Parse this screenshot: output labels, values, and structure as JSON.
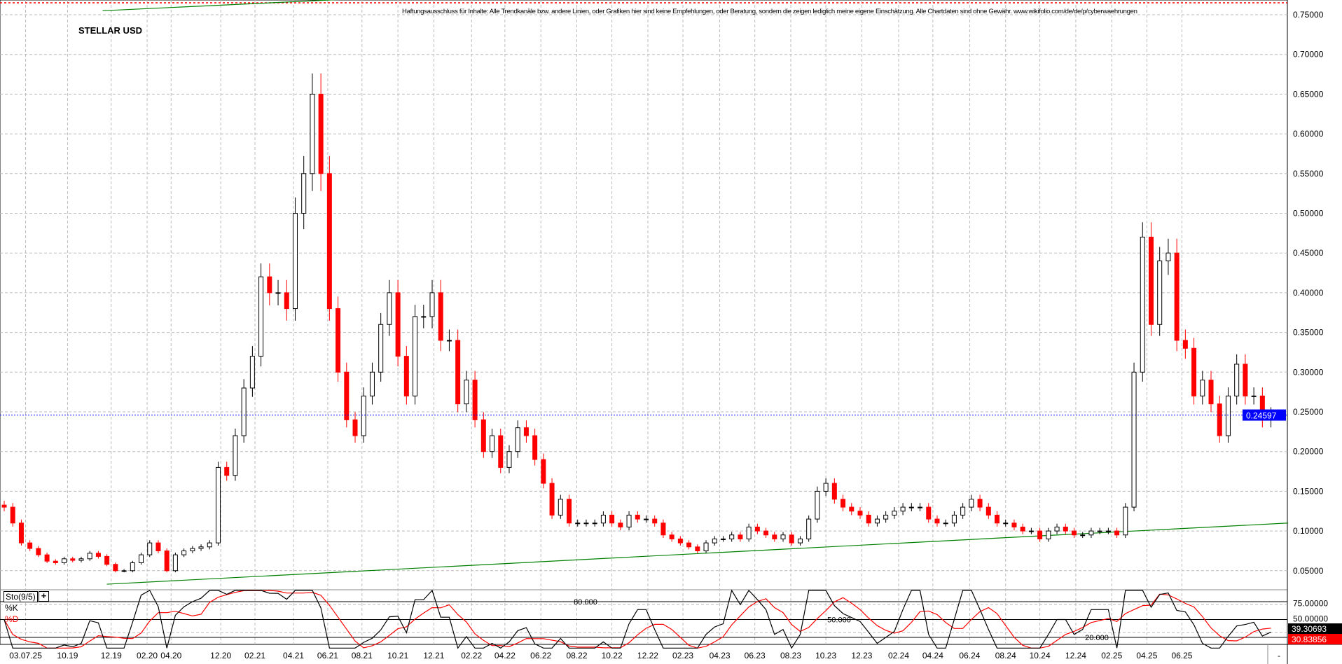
{
  "header": {
    "title": "STELLAR USD",
    "disclaimer": "Haftungsausschluss für Inhalte: Alle Trendkanäle bzw. andere Linien, oder Grafiken hier sind keine Empfehlungen, oder Beratung, sondern die zeigen lediglich meine eigene Einschätzung. Alle Chartdaten sind ohne Gewähr.  www.wikifolio.com/de/de/p/cyberwaehrungen"
  },
  "indicator": {
    "label": "Sto(9/5)",
    "add_button": "+",
    "k_label": "%K",
    "d_label": "%D",
    "level_labels": [
      "80.000",
      "50.000",
      "20.000"
    ],
    "axis_labels": [
      "75.00000",
      "50.00000"
    ],
    "k_value": "39.30693",
    "d_value": "30.83856",
    "k_color": "#000000",
    "d_color": "#ff0000"
  },
  "axis_corner": "-",
  "chart_data": {
    "type": "candlestick",
    "title": "STELLAR USD",
    "ylim": [
      0.03,
      0.765
    ],
    "y_ticks": [
      "0.75000",
      "0.70000",
      "0.65000",
      "0.60000",
      "0.55000",
      "0.50000",
      "0.45000",
      "0.40000",
      "0.35000",
      "0.30000",
      "0.25000",
      "0.20000",
      "0.15000",
      "0.10000",
      "0.05000"
    ],
    "grid": true,
    "up_color": "#000000",
    "down_color": "#ff0000",
    "current_price": "0.24597",
    "current_price_color": "#0000ff",
    "resistance_line_price": 0.765,
    "resistance_line_color": "#ff0000",
    "x_tick_labels": [
      {
        "label": "03.07.25",
        "bar": 2.5
      },
      {
        "label": "10.19",
        "bar": 7.4
      },
      {
        "label": "12.19",
        "bar": 12.5
      },
      {
        "label": "02.20",
        "bar": 16.7
      },
      {
        "label": "04.20",
        "bar": 19.5
      },
      {
        "label": "12.20",
        "bar": 25.3
      },
      {
        "label": "02.21",
        "bar": 29.3
      },
      {
        "label": "04.21",
        "bar": 33.8
      },
      {
        "label": "06.21",
        "bar": 37.8
      },
      {
        "label": "08.21",
        "bar": 41.8
      },
      {
        "label": "10.21",
        "bar": 46
      },
      {
        "label": "12.21",
        "bar": 50.2
      },
      {
        "label": "02.22",
        "bar": 54.6
      },
      {
        "label": "04.22",
        "bar": 58.5
      },
      {
        "label": "06.22",
        "bar": 62.7
      },
      {
        "label": "08.22",
        "bar": 66.9
      },
      {
        "label": "10.22",
        "bar": 71
      },
      {
        "label": "12.22",
        "bar": 75.2
      },
      {
        "label": "02.23",
        "bar": 79.3
      },
      {
        "label": "04.23",
        "bar": 83.6
      },
      {
        "label": "06.23",
        "bar": 87.7
      },
      {
        "label": "08.23",
        "bar": 91.9
      },
      {
        "label": "10.23",
        "bar": 96
      },
      {
        "label": "12.23",
        "bar": 100.2
      },
      {
        "label": "02.24",
        "bar": 104.5
      },
      {
        "label": "04.24",
        "bar": 108.5
      },
      {
        "label": "06.24",
        "bar": 112.8
      },
      {
        "label": "08.24",
        "bar": 117
      },
      {
        "label": "10.24",
        "bar": 121
      },
      {
        "label": "12.24",
        "bar": 125.2
      },
      {
        "label": "02.25",
        "bar": 129.4
      },
      {
        "label": "04.25",
        "bar": 133.5
      },
      {
        "label": "06.25",
        "bar": 137.6
      }
    ],
    "trendlines": [
      {
        "color": "#008000",
        "from_bar": 12,
        "from_price": 0.033,
        "to_bar": 150,
        "to_price": 0.11
      },
      {
        "color": "#008000",
        "from_bar": 11.5,
        "from_price": 0.755,
        "to_bar": 41,
        "to_price": 0.77
      }
    ],
    "closes": [
      0.13,
      0.11,
      0.085,
      0.078,
      0.07,
      0.062,
      0.06,
      0.065,
      0.063,
      0.065,
      0.072,
      0.068,
      0.058,
      0.05,
      0.05,
      0.06,
      0.07,
      0.085,
      0.075,
      0.05,
      0.07,
      0.075,
      0.078,
      0.08,
      0.085,
      0.18,
      0.17,
      0.22,
      0.28,
      0.32,
      0.42,
      0.4,
      0.4,
      0.38,
      0.5,
      0.55,
      0.65,
      0.55,
      0.38,
      0.3,
      0.24,
      0.22,
      0.27,
      0.3,
      0.36,
      0.4,
      0.32,
      0.27,
      0.37,
      0.37,
      0.4,
      0.34,
      0.34,
      0.26,
      0.29,
      0.24,
      0.2,
      0.22,
      0.18,
      0.2,
      0.23,
      0.22,
      0.19,
      0.16,
      0.12,
      0.14,
      0.11,
      0.11,
      0.11,
      0.11,
      0.12,
      0.11,
      0.105,
      0.12,
      0.115,
      0.115,
      0.11,
      0.095,
      0.09,
      0.085,
      0.08,
      0.075,
      0.085,
      0.09,
      0.09,
      0.095,
      0.09,
      0.105,
      0.1,
      0.095,
      0.09,
      0.095,
      0.085,
      0.09,
      0.115,
      0.15,
      0.16,
      0.14,
      0.13,
      0.125,
      0.12,
      0.11,
      0.115,
      0.12,
      0.125,
      0.13,
      0.13,
      0.13,
      0.115,
      0.11,
      0.11,
      0.12,
      0.13,
      0.14,
      0.13,
      0.12,
      0.11,
      0.11,
      0.105,
      0.1,
      0.1,
      0.09,
      0.1,
      0.105,
      0.1,
      0.095,
      0.095,
      0.1,
      0.1,
      0.1,
      0.095,
      0.13,
      0.3,
      0.47,
      0.36,
      0.44,
      0.45,
      0.34,
      0.33,
      0.27,
      0.29,
      0.26,
      0.22,
      0.27,
      0.31,
      0.27,
      0.27,
      0.24,
      0.246
    ]
  }
}
